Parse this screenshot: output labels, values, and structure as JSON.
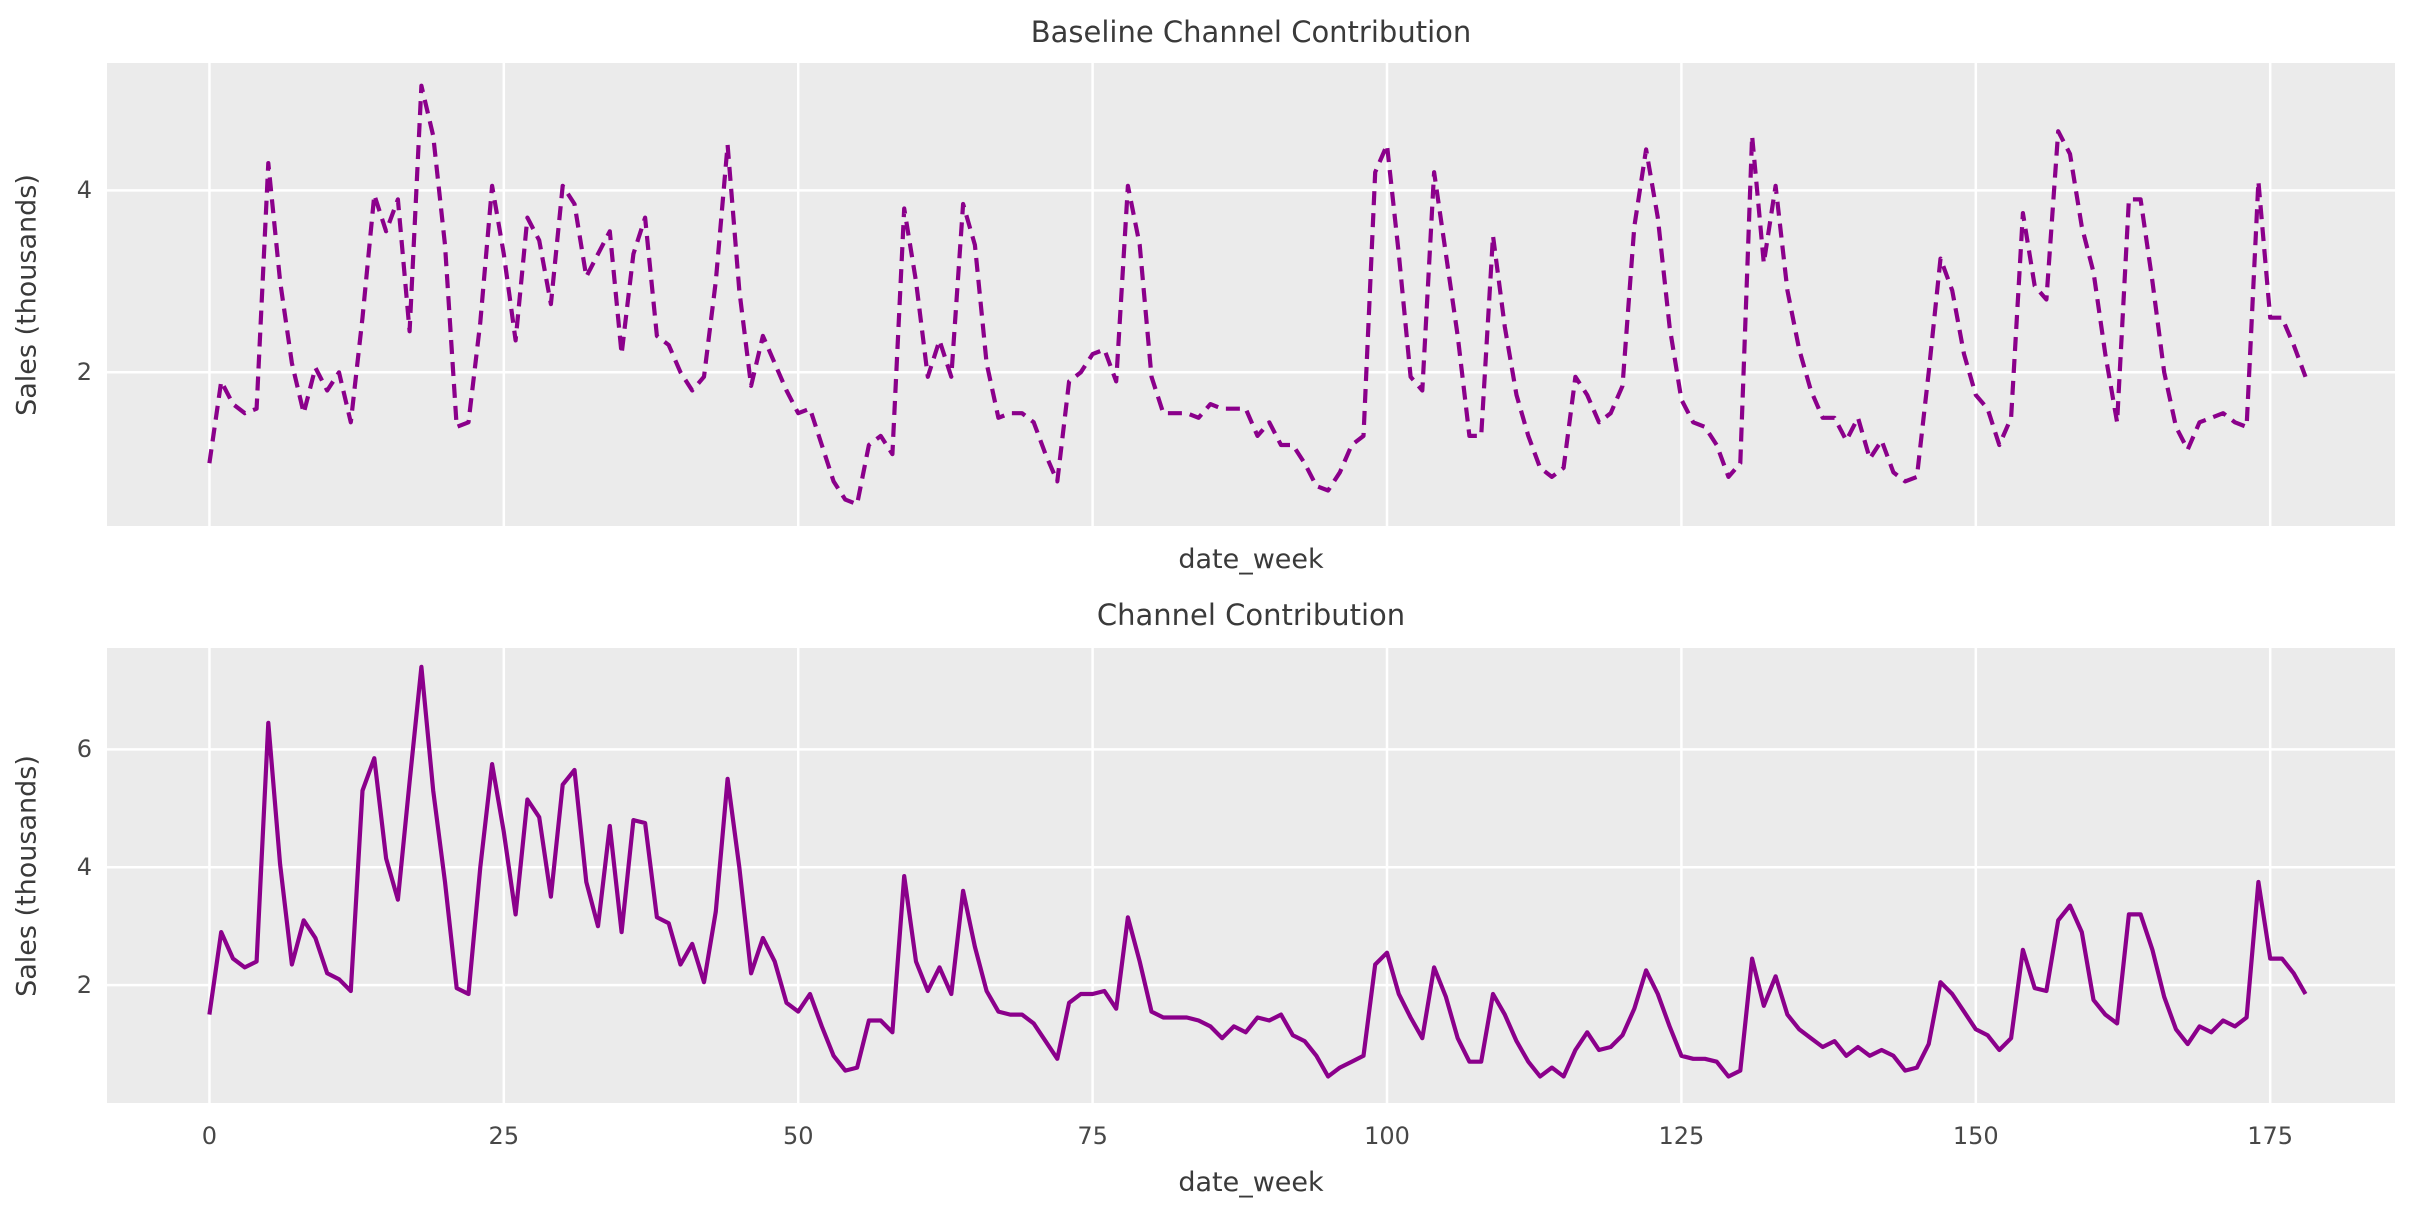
{
  "figure": {
    "background": "#ffffff",
    "plot_background": "#ebebeb",
    "grid_color": "#ffffff",
    "line_color": "#8b008b",
    "title_color": "#3a3a3a",
    "tick_color": "#474747"
  },
  "chart_data": [
    {
      "type": "line",
      "title": "Baseline Channel Contribution",
      "xlabel": "date_week",
      "ylabel": "Sales (thousands)",
      "line_style": "dashed",
      "grid": true,
      "legend": "none",
      "x_start": 0,
      "x_step": 1,
      "xlim": [
        -8.7,
        185.6
      ],
      "ylim": [
        0.31,
        5.4
      ],
      "xticks": [
        0,
        25,
        50,
        75,
        100,
        125,
        150,
        175
      ],
      "show_x_tick_labels": false,
      "yticks": [
        2,
        4
      ],
      "values": [
        1.0,
        1.9,
        1.65,
        1.55,
        1.6,
        4.3,
        3.0,
        2.1,
        1.55,
        2.05,
        1.8,
        2.0,
        1.45,
        2.6,
        3.95,
        3.55,
        3.9,
        2.45,
        5.15,
        4.6,
        3.4,
        1.4,
        1.45,
        2.55,
        4.05,
        3.3,
        2.35,
        3.7,
        3.45,
        2.75,
        4.05,
        3.85,
        3.05,
        3.3,
        3.55,
        2.2,
        3.3,
        3.7,
        2.4,
        2.3,
        2.0,
        1.8,
        1.95,
        3.0,
        4.5,
        2.9,
        1.85,
        2.4,
        2.1,
        1.8,
        1.55,
        1.6,
        1.2,
        0.8,
        0.6,
        0.55,
        1.2,
        1.3,
        1.1,
        3.8,
        3.0,
        1.95,
        2.35,
        1.95,
        3.85,
        3.4,
        2.1,
        1.5,
        1.55,
        1.55,
        1.45,
        1.1,
        0.8,
        1.9,
        2.0,
        2.2,
        2.25,
        1.9,
        4.05,
        3.4,
        1.95,
        1.55,
        1.55,
        1.55,
        1.5,
        1.65,
        1.6,
        1.6,
        1.6,
        1.3,
        1.45,
        1.2,
        1.2,
        1.0,
        0.75,
        0.7,
        0.9,
        1.2,
        1.3,
        4.2,
        4.5,
        3.3,
        1.95,
        1.8,
        4.2,
        3.3,
        2.4,
        1.3,
        1.3,
        3.5,
        2.5,
        1.75,
        1.3,
        0.95,
        0.85,
        0.95,
        1.95,
        1.75,
        1.45,
        1.55,
        1.85,
        3.6,
        4.45,
        3.7,
        2.5,
        1.7,
        1.45,
        1.4,
        1.2,
        0.85,
        1.0,
        4.6,
        3.2,
        4.05,
        2.9,
        2.25,
        1.8,
        1.5,
        1.5,
        1.25,
        1.5,
        1.05,
        1.25,
        0.9,
        0.8,
        0.85,
        2.0,
        3.25,
        2.9,
        2.2,
        1.75,
        1.6,
        1.2,
        1.5,
        3.75,
        2.95,
        2.8,
        4.65,
        4.4,
        3.6,
        3.1,
        2.2,
        1.45,
        3.9,
        3.9,
        3.0,
        2.0,
        1.4,
        1.15,
        1.45,
        1.5,
        1.55,
        1.45,
        1.4,
        4.1,
        2.6,
        2.6,
        2.3,
        1.95
      ]
    },
    {
      "type": "line",
      "title": "Channel Contribution",
      "xlabel": "date_week",
      "ylabel": "Sales (thousands)",
      "line_style": "solid",
      "grid": true,
      "legend": "none",
      "x_start": 0,
      "x_step": 1,
      "xlim": [
        -8.7,
        185.6
      ],
      "ylim": [
        0.0,
        7.72
      ],
      "xticks": [
        0,
        25,
        50,
        75,
        100,
        125,
        150,
        175
      ],
      "show_x_tick_labels": true,
      "yticks": [
        2,
        4,
        6
      ],
      "values": [
        1.5,
        2.9,
        2.45,
        2.3,
        2.4,
        6.45,
        4.05,
        2.35,
        3.1,
        2.8,
        2.2,
        2.1,
        1.9,
        5.3,
        5.85,
        4.15,
        3.45,
        5.45,
        7.4,
        5.3,
        3.75,
        1.95,
        1.85,
        4.0,
        5.75,
        4.6,
        3.2,
        5.15,
        4.85,
        3.5,
        5.4,
        5.65,
        3.75,
        3.0,
        4.7,
        2.9,
        4.8,
        4.75,
        3.15,
        3.05,
        2.35,
        2.7,
        2.05,
        3.25,
        5.5,
        4.0,
        2.2,
        2.8,
        2.4,
        1.7,
        1.55,
        1.85,
        1.3,
        0.8,
        0.55,
        0.6,
        1.4,
        1.4,
        1.2,
        3.85,
        2.4,
        1.9,
        2.3,
        1.85,
        3.6,
        2.65,
        1.9,
        1.55,
        1.5,
        1.5,
        1.35,
        1.05,
        0.75,
        1.7,
        1.85,
        1.85,
        1.9,
        1.6,
        3.15,
        2.4,
        1.55,
        1.45,
        1.45,
        1.45,
        1.4,
        1.3,
        1.1,
        1.3,
        1.2,
        1.45,
        1.4,
        1.5,
        1.15,
        1.05,
        0.8,
        0.45,
        0.6,
        0.7,
        0.8,
        2.35,
        2.55,
        1.85,
        1.45,
        1.1,
        2.3,
        1.8,
        1.1,
        0.7,
        0.7,
        1.85,
        1.5,
        1.05,
        0.7,
        0.45,
        0.6,
        0.45,
        0.9,
        1.2,
        0.9,
        0.95,
        1.15,
        1.6,
        2.25,
        1.85,
        1.3,
        0.8,
        0.75,
        0.75,
        0.7,
        0.45,
        0.55,
        2.45,
        1.65,
        2.15,
        1.5,
        1.25,
        1.1,
        0.95,
        1.05,
        0.8,
        0.95,
        0.8,
        0.9,
        0.8,
        0.55,
        0.6,
        1.0,
        2.05,
        1.85,
        1.55,
        1.25,
        1.15,
        0.9,
        1.1,
        2.6,
        1.95,
        1.9,
        3.1,
        3.35,
        2.9,
        1.75,
        1.5,
        1.35,
        3.2,
        3.2,
        2.6,
        1.8,
        1.25,
        1.0,
        1.3,
        1.2,
        1.4,
        1.3,
        1.45,
        3.75,
        2.45,
        2.45,
        2.2,
        1.85
      ]
    }
  ]
}
